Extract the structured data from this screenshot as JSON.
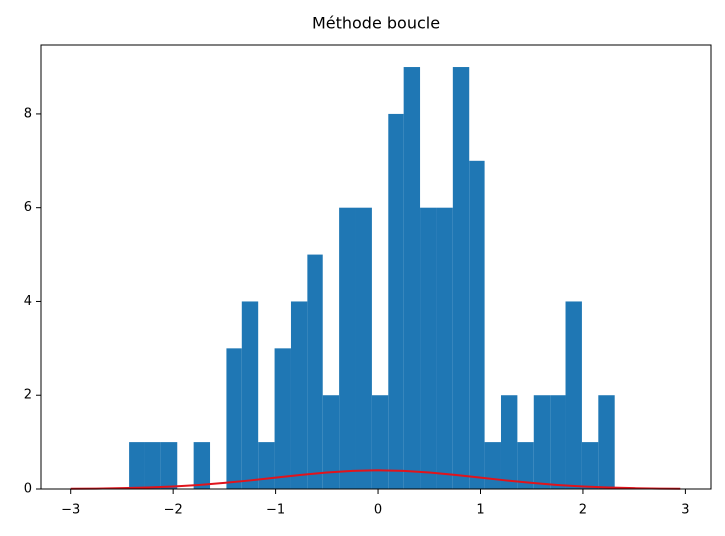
{
  "chart_data": {
    "type": "histogram",
    "title": "Méthode boucle",
    "bins": [
      -2.43,
      -2.28,
      -2.12,
      -1.96,
      -1.8,
      -1.64,
      -1.48,
      -1.33,
      -1.17,
      -1.01,
      -0.85,
      -0.69,
      -0.54,
      -0.38,
      -0.22,
      -0.06,
      0.1,
      0.25,
      0.41,
      0.57,
      0.73,
      0.89,
      1.04,
      1.2,
      1.36,
      1.52,
      1.68,
      1.83,
      1.99,
      2.15,
      2.31
    ],
    "values": [
      1,
      1,
      1,
      0,
      1,
      0,
      3,
      4,
      1,
      3,
      4,
      5,
      2,
      6,
      6,
      2,
      8,
      9,
      6,
      6,
      9,
      7,
      1,
      2,
      1,
      2,
      2,
      4,
      1,
      2
    ],
    "color": "#1f77b4",
    "line": {
      "type": "line",
      "color": "#e0141c",
      "x": [
        -3,
        -2.75,
        -2.5,
        -2.25,
        -2,
        -1.75,
        -1.5,
        -1.25,
        -1,
        -0.75,
        -0.5,
        -0.25,
        0,
        0.25,
        0.5,
        0.75,
        1,
        1.25,
        1.5,
        1.75,
        2,
        2.25,
        2.5,
        2.75,
        2.95
      ],
      "values": [
        0.0044,
        0.0091,
        0.0175,
        0.0317,
        0.054,
        0.0863,
        0.1295,
        0.1826,
        0.242,
        0.3011,
        0.3521,
        0.3867,
        0.3989,
        0.3867,
        0.3521,
        0.3011,
        0.242,
        0.1826,
        0.1295,
        0.0863,
        0.054,
        0.0317,
        0.0175,
        0.0091,
        0.0051
      ]
    },
    "xlim": [
      -3.29,
      3.25
    ],
    "ylim": [
      0,
      9.47
    ],
    "xticks": [
      {
        "value": -3,
        "label": "−3"
      },
      {
        "value": -2,
        "label": "−2"
      },
      {
        "value": -1,
        "label": "−1"
      },
      0,
      1,
      2,
      3
    ],
    "yticks": [
      0,
      2,
      4,
      6,
      8
    ],
    "grid": false
  }
}
